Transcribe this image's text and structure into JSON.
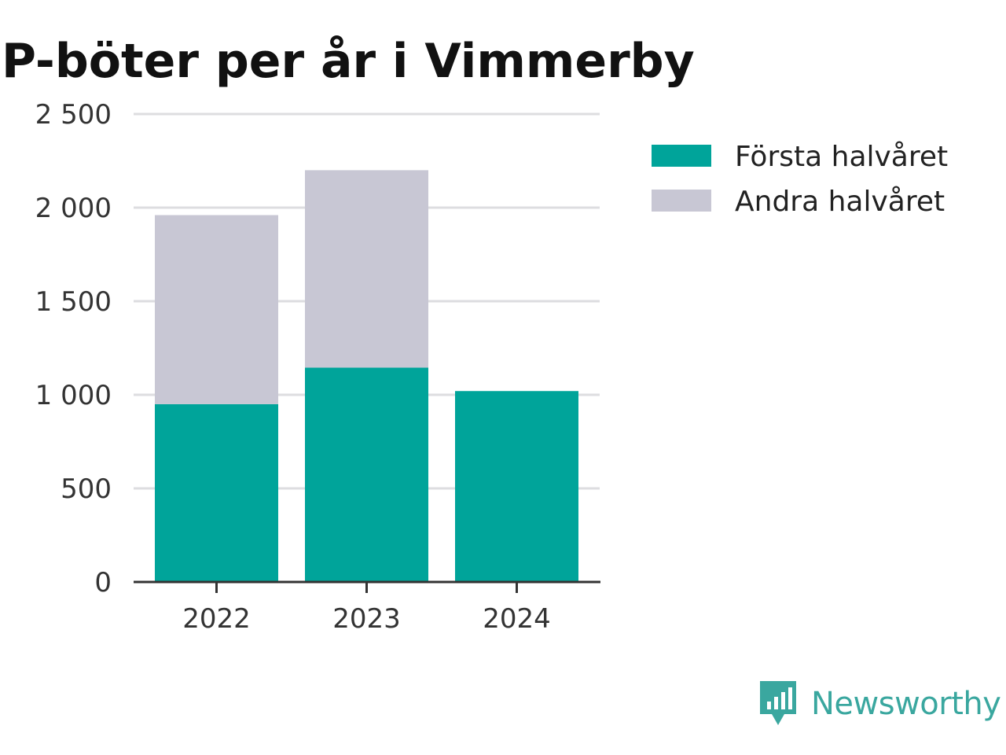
{
  "chart_data": {
    "type": "bar",
    "stacked": true,
    "title": "P-böter per år i Vimmerby",
    "categories": [
      "2022",
      "2023",
      "2024"
    ],
    "series": [
      {
        "name": "Första halvåret",
        "values": [
          950,
          1145,
          1020
        ],
        "color": "#00a49a"
      },
      {
        "name": "Andra halvåret",
        "values": [
          1010,
          1055,
          0
        ],
        "color": "#c8c7d4"
      }
    ],
    "ylim": [
      0,
      2500
    ],
    "yticks": [
      0,
      500,
      1000,
      1500,
      2000,
      2500
    ],
    "ytick_labels": [
      "0",
      "500",
      "1 000",
      "1 500",
      "2 000",
      "2 500"
    ],
    "xlabel": "",
    "ylabel": "",
    "grid": true,
    "legend_position": "top-right"
  },
  "brand": {
    "name": "Newsworthy",
    "icon": "newsworthy-logo-icon",
    "color": "#3aa79f"
  }
}
